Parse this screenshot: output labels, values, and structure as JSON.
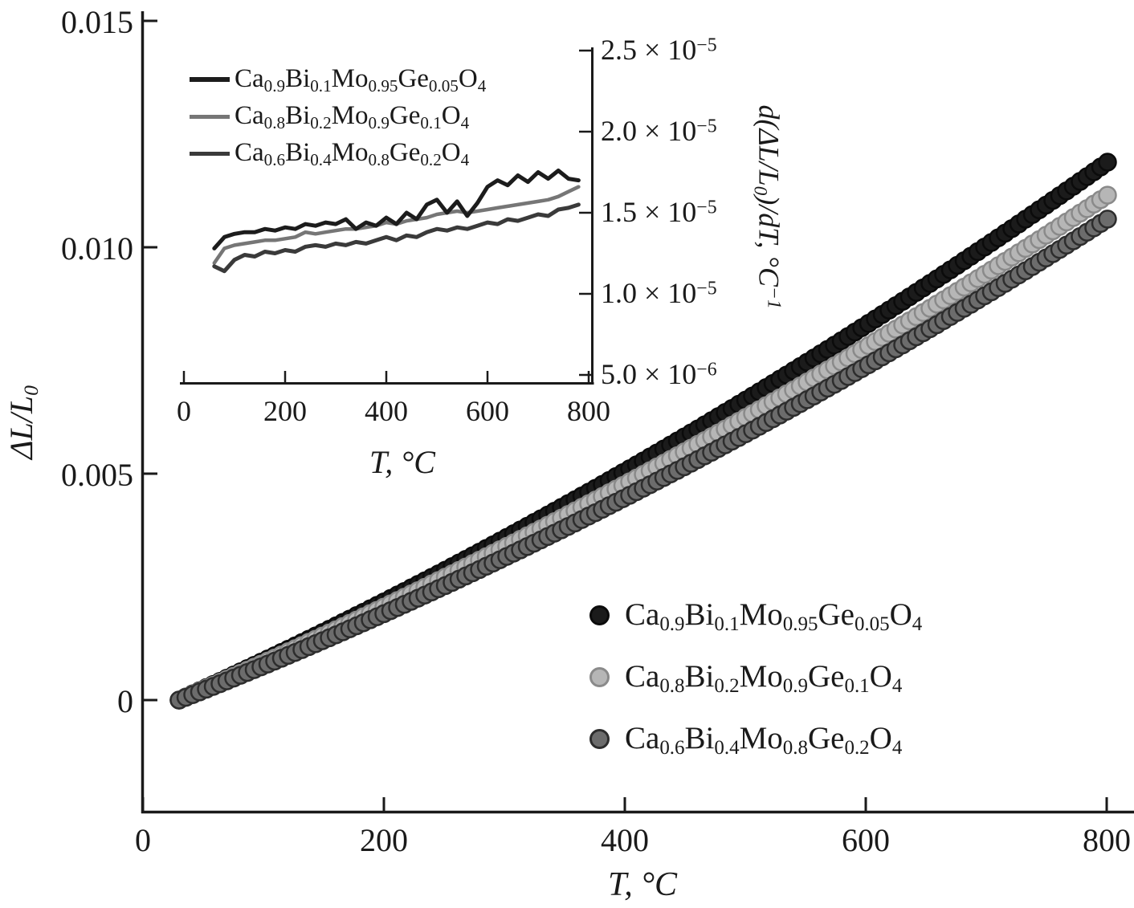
{
  "style": {
    "background": "#ffffff",
    "axis_color": "#1a1a1a"
  },
  "chart_data": [
    {
      "id": "main",
      "type": "scatter",
      "title": "",
      "xlabel": "T, °C",
      "ylabel": "ΔL/L_{0}",
      "xlim": [
        0,
        822
      ],
      "ylim": [
        -0.0025,
        0.015
      ],
      "grid": false,
      "legend_position": "lower right",
      "x_ticks": [
        0,
        200,
        400,
        600,
        800
      ],
      "x_tick_labels": [
        "0",
        "200",
        "400",
        "600",
        "800"
      ],
      "y_ticks": [
        0,
        0.005,
        0.01,
        0.015
      ],
      "y_tick_labels": [
        "0",
        "0.005",
        "0.010",
        "0.015"
      ],
      "marker": "circle",
      "series": [
        {
          "name": "Ca_{0.9}Bi_{0.1}Mo_{0.95}Ge_{0.05}O_{4}",
          "fill": "#1b1b1b",
          "edge": "#0b0b0b",
          "T": [
            30,
            55,
            80,
            105,
            130,
            155,
            180,
            205,
            230,
            255,
            280,
            305,
            330,
            355,
            380,
            405,
            430,
            455,
            480,
            505,
            530,
            555,
            580,
            605,
            630,
            655,
            680,
            705,
            730,
            755,
            780,
            805
          ],
          "v": [
            0,
            0.000303,
            0.000611,
            0.000925,
            0.001244,
            0.001569,
            0.0019,
            0.002236,
            0.002577,
            0.002924,
            0.003277,
            0.003635,
            0.003999,
            0.004368,
            0.004743,
            0.005123,
            0.005509,
            0.0059,
            0.006297,
            0.0067,
            0.007108,
            0.007521,
            0.00794,
            0.008365,
            0.008795,
            0.009231,
            0.009672,
            0.010118,
            0.010571,
            0.011029,
            0.011492,
            0.011961
          ]
        },
        {
          "name": "Ca_{0.8}Bi_{0.2}Mo_{0.9}Ge_{0.1}O_{4}",
          "fill": "#b6b6b6",
          "edge": "#8a8a8a",
          "T": [
            30,
            55,
            80,
            105,
            130,
            155,
            180,
            205,
            230,
            255,
            280,
            305,
            330,
            355,
            380,
            405,
            430,
            455,
            480,
            505,
            530,
            555,
            580,
            605,
            630,
            655,
            680,
            705,
            730,
            755,
            780,
            805
          ],
          "v": [
            0,
            0.000287,
            0.00058,
            0.000877,
            0.00118,
            0.001487,
            0.0018,
            0.002117,
            0.002439,
            0.002766,
            0.003099,
            0.003436,
            0.003778,
            0.004125,
            0.004478,
            0.004835,
            0.005197,
            0.005564,
            0.005936,
            0.006313,
            0.006695,
            0.007082,
            0.007474,
            0.007871,
            0.008273,
            0.00868,
            0.009092,
            0.009508,
            0.00993,
            0.010357,
            0.010789,
            0.011226
          ]
        },
        {
          "name": "Ca_{0.6}Bi_{0.4}Mo_{0.8}Ge_{0.2}O_{4}",
          "fill": "#6c6c6c",
          "edge": "#2d2d2d",
          "T": [
            30,
            55,
            80,
            105,
            130,
            155,
            180,
            205,
            230,
            255,
            280,
            305,
            330,
            355,
            380,
            405,
            430,
            455,
            480,
            505,
            530,
            555,
            580,
            605,
            630,
            655,
            680,
            705,
            730,
            755,
            780,
            805
          ],
          "v": [
            0,
            0.000265,
            0.000536,
            0.000811,
            0.001093,
            0.001379,
            0.001671,
            0.001968,
            0.00227,
            0.002578,
            0.002891,
            0.00321,
            0.003533,
            0.003862,
            0.004197,
            0.004537,
            0.004882,
            0.005232,
            0.005588,
            0.005949,
            0.006315,
            0.006687,
            0.007064,
            0.007446,
            0.007834,
            0.008227,
            0.008625,
            0.009029,
            0.009437,
            0.009852,
            0.010271,
            0.010696
          ]
        }
      ]
    },
    {
      "id": "inset",
      "type": "line",
      "title": "",
      "xlabel": "T, °C",
      "ylabel": "d(ΔL/L_{0})/dT, °C^{−1}",
      "xlim": [
        0,
        810
      ],
      "ylim": [
        4.5e-06,
        2.55e-05
      ],
      "grid": false,
      "y_axis_side": "right",
      "x_ticks": [
        0,
        200,
        400,
        600,
        800
      ],
      "x_tick_labels": [
        "0",
        "200",
        "400",
        "600",
        "800"
      ],
      "y_ticks": [
        2.5e-05,
        2e-05,
        1.5e-05,
        1e-05,
        5e-06
      ],
      "y_tick_labels": [
        "2.5 × 10^{−5}",
        "2.0 × 10^{−5}",
        "1.5 × 10^{−5}",
        "1.0 × 10^{−5}",
        "5.0 × 10^{−6}"
      ],
      "unit_note": "values_x1e5 are in units of 1e-5 per °C",
      "series": [
        {
          "name": "Ca_{0.9}Bi_{0.1}Mo_{0.95}Ge_{0.05}O_{4}",
          "color": "#1c1c1c",
          "width": 5,
          "T": [
            60,
            80,
            100,
            120,
            140,
            160,
            180,
            200,
            220,
            240,
            260,
            280,
            300,
            320,
            340,
            360,
            380,
            400,
            420,
            440,
            460,
            480,
            500,
            520,
            540,
            560,
            580,
            600,
            620,
            640,
            660,
            680,
            700,
            720,
            740,
            760,
            780
          ],
          "values_x1e5": [
            1.28,
            1.35,
            1.37,
            1.38,
            1.38,
            1.4,
            1.39,
            1.41,
            1.4,
            1.43,
            1.42,
            1.44,
            1.43,
            1.46,
            1.4,
            1.44,
            1.42,
            1.47,
            1.43,
            1.5,
            1.46,
            1.55,
            1.58,
            1.5,
            1.57,
            1.48,
            1.56,
            1.66,
            1.7,
            1.67,
            1.73,
            1.69,
            1.75,
            1.71,
            1.76,
            1.71,
            1.7
          ]
        },
        {
          "name": "Ca_{0.8}Bi_{0.2}Mo_{0.9}Ge_{0.1}O_{4}",
          "color": "#767676",
          "width": 4.5,
          "T": [
            60,
            80,
            100,
            120,
            140,
            160,
            180,
            200,
            220,
            240,
            260,
            280,
            300,
            320,
            340,
            360,
            380,
            400,
            420,
            440,
            460,
            480,
            500,
            520,
            540,
            560,
            580,
            600,
            620,
            640,
            660,
            680,
            700,
            720,
            740,
            760,
            780
          ],
          "values_x1e5": [
            1.19,
            1.28,
            1.3,
            1.31,
            1.32,
            1.33,
            1.33,
            1.34,
            1.35,
            1.38,
            1.37,
            1.38,
            1.39,
            1.4,
            1.4,
            1.41,
            1.42,
            1.44,
            1.43,
            1.45,
            1.46,
            1.47,
            1.49,
            1.5,
            1.51,
            1.5,
            1.51,
            1.52,
            1.53,
            1.54,
            1.55,
            1.56,
            1.57,
            1.58,
            1.6,
            1.63,
            1.66
          ]
        },
        {
          "name": "Ca_{0.6}Bi_{0.4}Mo_{0.8}Ge_{0.2}O_{4}",
          "color": "#3a3a3a",
          "width": 5,
          "T": [
            60,
            80,
            100,
            120,
            140,
            160,
            180,
            200,
            220,
            240,
            260,
            280,
            300,
            320,
            340,
            360,
            380,
            400,
            420,
            440,
            460,
            480,
            500,
            520,
            540,
            560,
            580,
            600,
            620,
            640,
            660,
            680,
            700,
            720,
            740,
            760,
            780
          ],
          "values_x1e5": [
            1.17,
            1.14,
            1.21,
            1.24,
            1.23,
            1.26,
            1.25,
            1.27,
            1.26,
            1.29,
            1.3,
            1.29,
            1.31,
            1.3,
            1.32,
            1.31,
            1.33,
            1.35,
            1.33,
            1.36,
            1.35,
            1.38,
            1.4,
            1.39,
            1.41,
            1.4,
            1.42,
            1.44,
            1.43,
            1.46,
            1.45,
            1.47,
            1.49,
            1.48,
            1.52,
            1.53,
            1.55
          ]
        }
      ]
    }
  ]
}
